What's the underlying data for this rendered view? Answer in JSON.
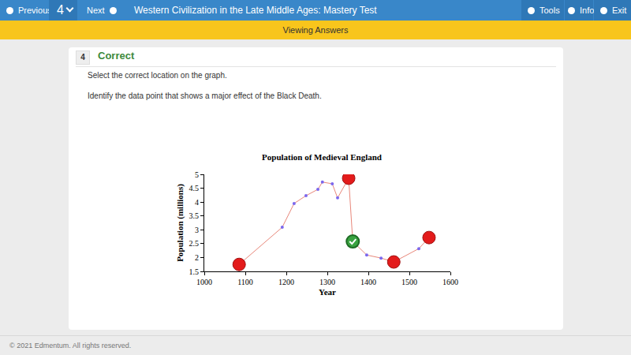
{
  "toolbar": {
    "previous": "Previous",
    "question_number": "4",
    "next": "Next",
    "title": "Western Civilization in the Late Middle Ages: Mastery Test",
    "tools": "Tools",
    "info": "Info",
    "exit": "Exit"
  },
  "banner": "Viewing Answers",
  "question": {
    "number": "4",
    "status": "Correct",
    "instruction": "Select the correct location on the graph.",
    "prompt": "Identify the data point that shows a major effect of the Black Death."
  },
  "chart_data": {
    "type": "line",
    "title": "Population of Medieval England",
    "x_label": "Year",
    "y_label": "Population (millions)",
    "x": [
      1085,
      1190,
      1219,
      1248,
      1277,
      1288,
      1312,
      1325,
      1352,
      1362,
      1396,
      1431,
      1462,
      1523,
      1548
    ],
    "values": [
      1.75,
      3.09,
      3.95,
      4.23,
      4.46,
      4.72,
      4.66,
      4.15,
      4.86,
      2.58,
      2.09,
      1.98,
      1.84,
      2.32,
      2.72
    ],
    "color": "#e8877a",
    "marker": "circle",
    "xlim": [
      1000,
      1600
    ],
    "xticks": [
      1000,
      1100,
      1200,
      1300,
      1400,
      1500,
      1600
    ],
    "ylim": [
      1.5,
      5
    ],
    "yticks": [
      1.5,
      2,
      2.5,
      3,
      3.5,
      4,
      4.5,
      5
    ],
    "grid": false,
    "answer_points": {
      "x": [
        1085,
        1352,
        1462,
        1548
      ],
      "values": [
        1.75,
        4.86,
        1.84,
        2.72
      ],
      "color": "#e31b1b"
    },
    "correct_point": {
      "x": [
        1362
      ],
      "values": [
        2.58
      ],
      "color": "#3aa340"
    }
  },
  "footer": "© 2021 Edmentum. All rights reserved."
}
